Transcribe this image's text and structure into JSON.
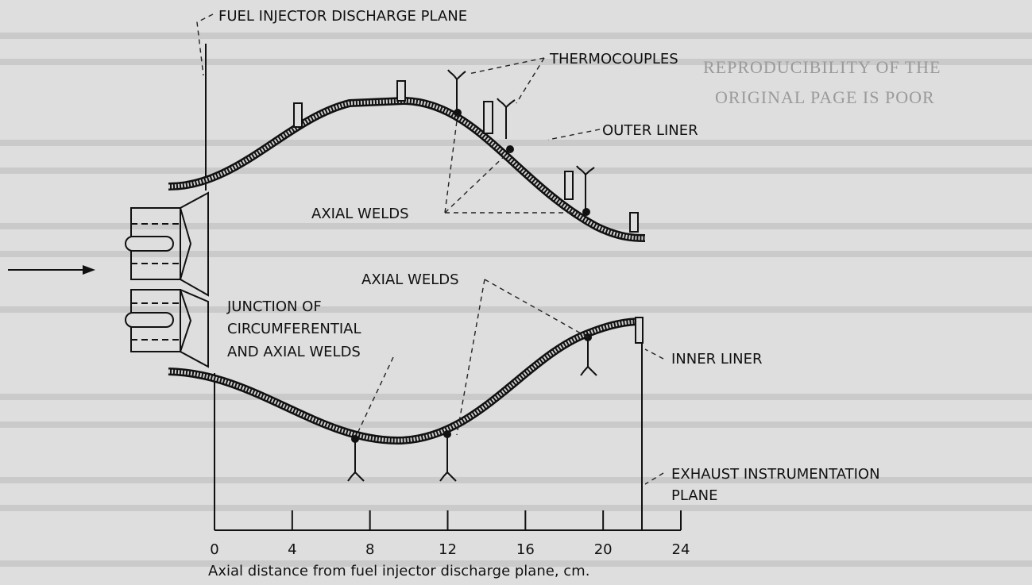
{
  "labels": {
    "fuel_injector_plane": "FUEL INJECTOR DISCHARGE PLANE",
    "thermocouples": "THERMOCOUPLES",
    "outer_liner": "OUTER LINER",
    "axial_welds_outer": "AXIAL WELDS",
    "axial_welds_inner": "AXIAL WELDS",
    "junction": [
      "JUNCTION OF",
      "CIRCUMFERENTIAL",
      "AND AXIAL WELDS"
    ],
    "inner_liner": "INNER LINER",
    "exhaust_plane": [
      "EXHAUST INSTRUMENTATION",
      "PLANE"
    ]
  },
  "stamp": [
    "REPRODUCIBILITY OF THE",
    "ORIGINAL PAGE IS POOR"
  ],
  "axis": {
    "label": "Axial distance from fuel injector discharge plane, cm.",
    "xlim": [
      0,
      24
    ],
    "xticks": [
      0,
      4,
      8,
      12,
      16,
      20,
      24
    ]
  }
}
